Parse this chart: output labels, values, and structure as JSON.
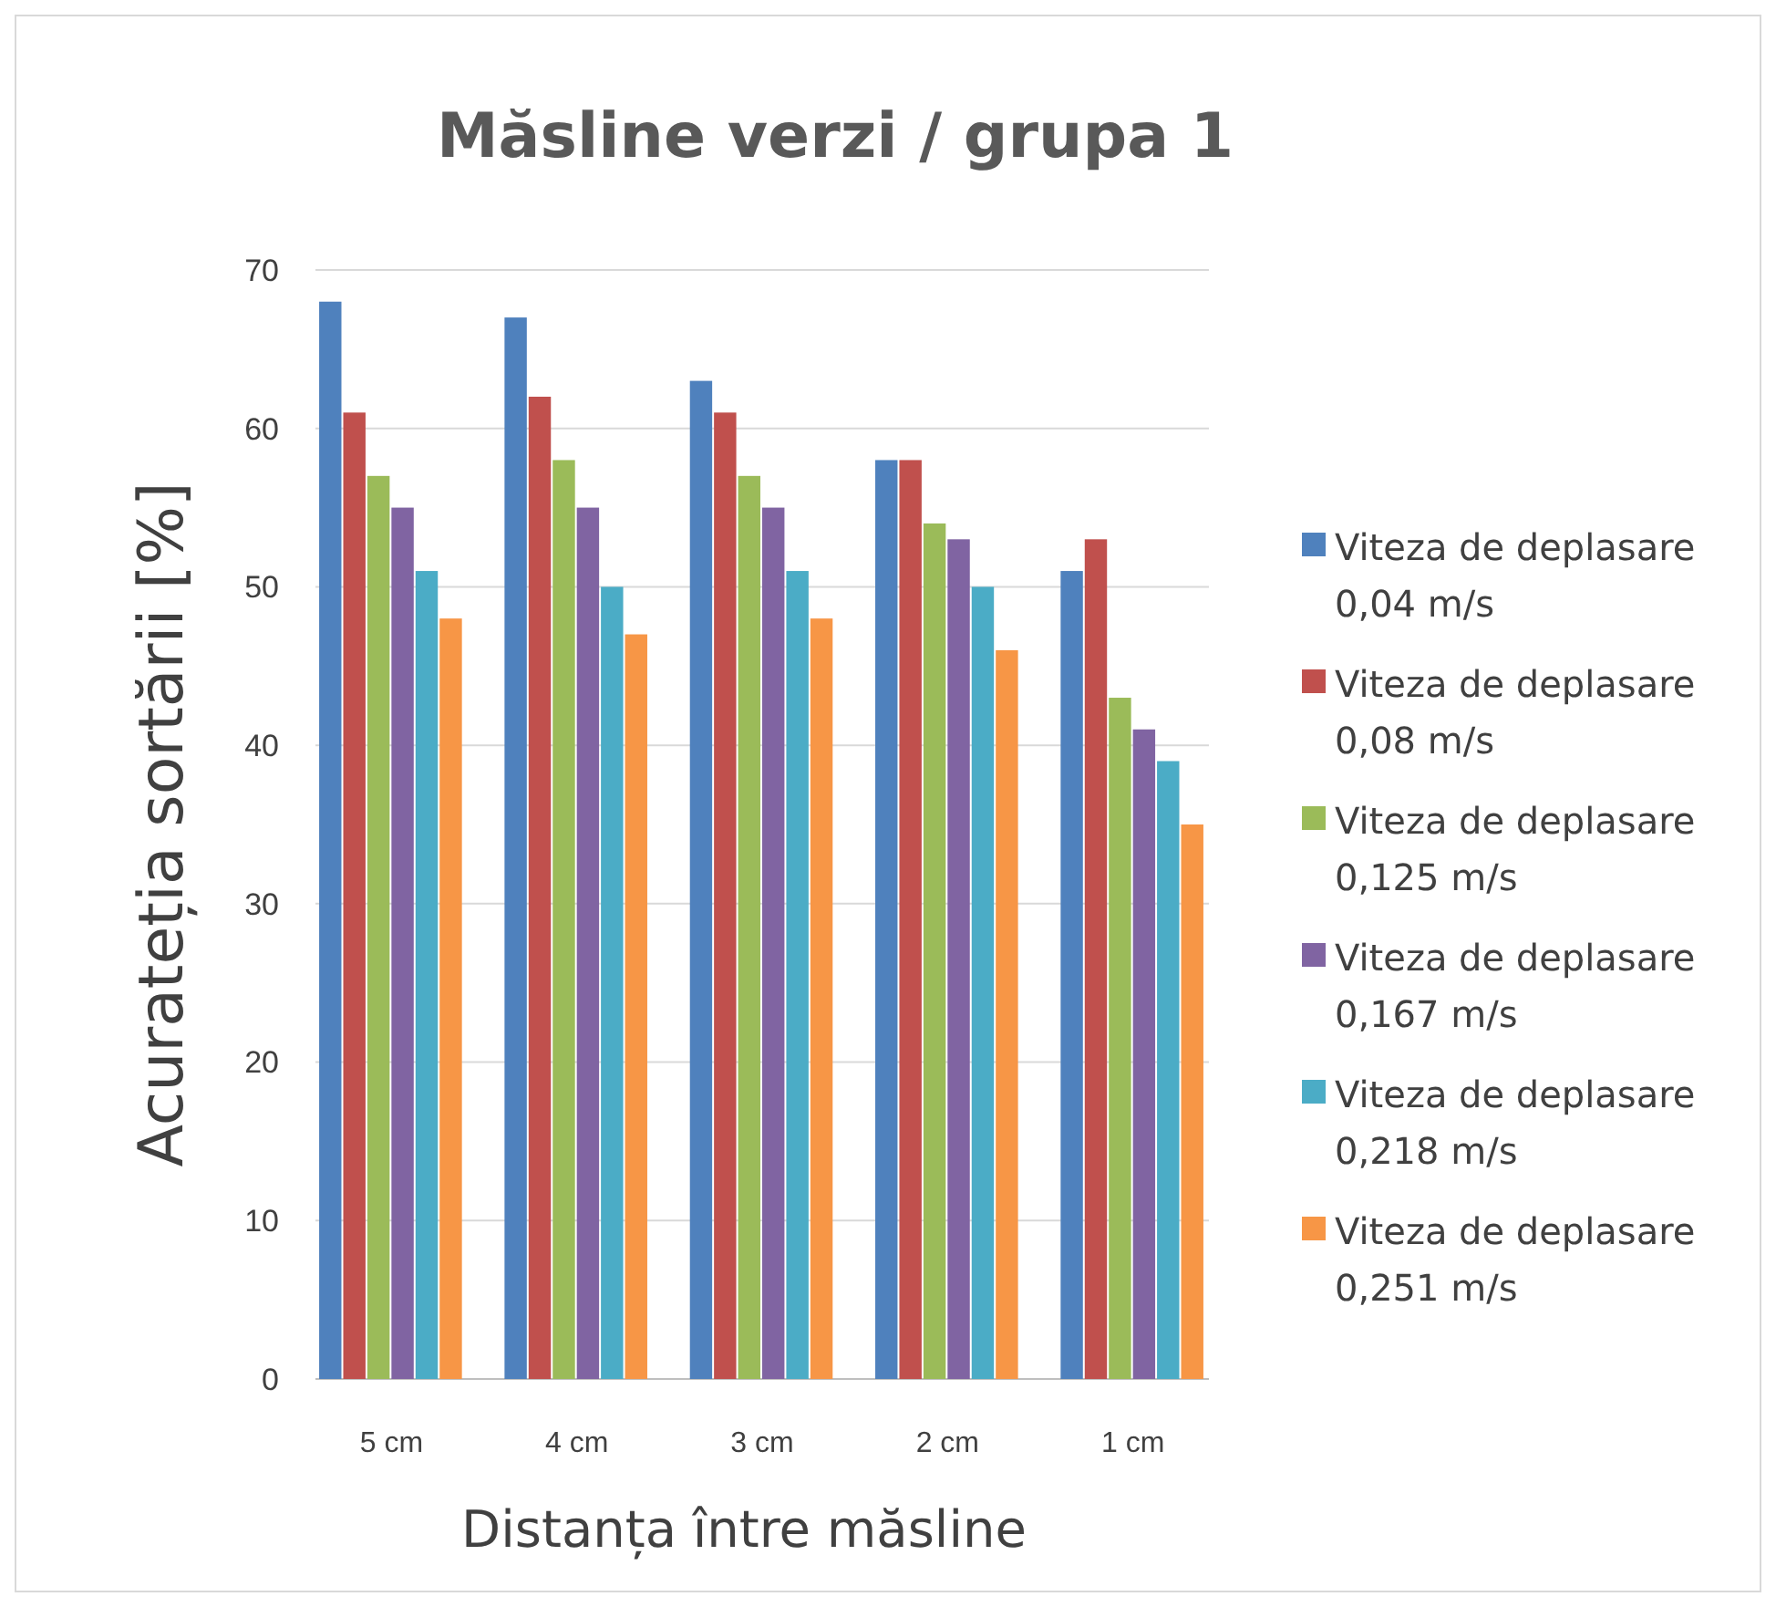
{
  "chart_data": {
    "type": "bar",
    "title": "Măsline verzi / grupa 1",
    "xlabel": "Distanța între măsline",
    "ylabel": "Acurateția sortării [%]",
    "categories": [
      "5 cm",
      "4 cm",
      "3 cm",
      "2 cm",
      "1 cm"
    ],
    "series": [
      {
        "name": "Viteza de deplasare 0,04 m/s",
        "color": "#4f81bd",
        "values": [
          68,
          67,
          63,
          58,
          51
        ]
      },
      {
        "name": "Viteza de deplasare 0,08 m/s",
        "color": "#c0504d",
        "values": [
          61,
          62,
          61,
          58,
          53
        ]
      },
      {
        "name": "Viteza de deplasare 0,125 m/s",
        "color": "#9bbb59",
        "values": [
          57,
          58,
          57,
          54,
          43
        ]
      },
      {
        "name": "Viteza de deplasare 0,167 m/s",
        "color": "#8064a2",
        "values": [
          55,
          55,
          55,
          53,
          41
        ]
      },
      {
        "name": "Viteza de deplasare 0,218 m/s",
        "color": "#4bacc6",
        "values": [
          51,
          50,
          51,
          50,
          39
        ]
      },
      {
        "name": "Viteza de deplasare 0,251 m/s",
        "color": "#f79646",
        "values": [
          48,
          47,
          48,
          46,
          35
        ]
      }
    ],
    "ylim": [
      0,
      70
    ],
    "yticks": [
      0,
      10,
      20,
      30,
      40,
      50,
      60,
      70
    ],
    "grid": true,
    "legend": "right"
  }
}
